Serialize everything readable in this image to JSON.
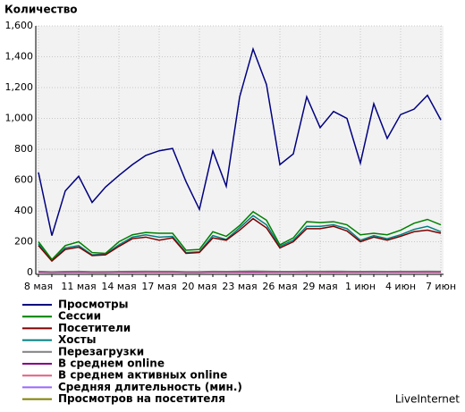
{
  "chart_data": {
    "type": "line",
    "title": "Количество",
    "source": "LiveInternet",
    "categories": [
      "8 мая",
      null,
      null,
      "11 мая",
      null,
      null,
      "14 мая",
      null,
      null,
      "17 мая",
      null,
      null,
      "20 мая",
      null,
      null,
      "23 мая",
      null,
      null,
      "26 мая",
      null,
      null,
      "29 мая",
      null,
      null,
      "1 июн",
      null,
      null,
      "4 июн",
      null,
      null,
      "7 июн"
    ],
    "ylim": [
      0,
      1600
    ],
    "yticks": [
      0,
      200,
      400,
      600,
      800,
      {
        "value": 1000,
        "label": "1,000"
      },
      {
        "value": 1200,
        "label": "1,200"
      },
      {
        "value": 1400,
        "label": "1,400"
      },
      {
        "value": 1600,
        "label": "1,600"
      }
    ],
    "grid": true,
    "series": [
      {
        "name": "Просмотры",
        "color": "#000080",
        "values": [
          650,
          240,
          530,
          625,
          455,
          555,
          630,
          700,
          760,
          790,
          805,
          590,
          410,
          790,
          560,
          1140,
          1450,
          1220,
          700,
          770,
          1140,
          940,
          1045,
          1000,
          710,
          1095,
          870,
          1025,
          1060,
          1150,
          990
        ]
      },
      {
        "name": "Сессии",
        "color": "#008000",
        "values": [
          200,
          85,
          175,
          200,
          130,
          125,
          200,
          245,
          260,
          255,
          255,
          145,
          150,
          265,
          235,
          305,
          395,
          340,
          180,
          225,
          330,
          325,
          330,
          310,
          245,
          255,
          245,
          275,
          320,
          345,
          310
        ]
      },
      {
        "name": "Посетители",
        "color": "#800000",
        "values": [
          175,
          75,
          150,
          165,
          110,
          115,
          170,
          220,
          230,
          210,
          225,
          125,
          130,
          225,
          210,
          275,
          350,
          290,
          160,
          200,
          285,
          285,
          300,
          270,
          200,
          230,
          210,
          235,
          265,
          275,
          255
        ]
      },
      {
        "name": "Хосты",
        "color": "#008080",
        "values": [
          185,
          80,
          160,
          175,
          115,
          120,
          180,
          230,
          245,
          230,
          235,
          130,
          135,
          240,
          215,
          290,
          370,
          310,
          170,
          210,
          300,
          300,
          310,
          285,
          210,
          240,
          220,
          245,
          280,
          300,
          265
        ]
      },
      {
        "name": "Перезагрузки",
        "color": "#808080",
        "values": [
          8,
          5,
          7,
          8,
          6,
          6,
          7,
          8,
          9,
          8,
          8,
          6,
          6,
          8,
          7,
          9,
          10,
          9,
          7,
          7,
          9,
          8,
          9,
          8,
          7,
          8,
          7,
          8,
          8,
          9,
          8
        ]
      },
      {
        "name": "В среднем online",
        "color": "#800080",
        "values": [
          4,
          2,
          3,
          4,
          3,
          3,
          4,
          4,
          5,
          5,
          5,
          3,
          3,
          5,
          4,
          5,
          6,
          5,
          4,
          4,
          5,
          5,
          5,
          5,
          4,
          5,
          4,
          5,
          5,
          5,
          5
        ]
      },
      {
        "name": "В среднем активных online",
        "color": "#e06080",
        "values": [
          2,
          1,
          2,
          2,
          1,
          1,
          2,
          2,
          2,
          2,
          2,
          1,
          1,
          2,
          2,
          2,
          3,
          2,
          2,
          2,
          2,
          2,
          2,
          2,
          2,
          2,
          2,
          2,
          2,
          2,
          2
        ]
      },
      {
        "name": "Средняя длительность (мин.)",
        "color": "#9966ff",
        "values": [
          5,
          4,
          5,
          5,
          4,
          4,
          5,
          5,
          5,
          5,
          5,
          4,
          4,
          5,
          5,
          5,
          6,
          5,
          4,
          5,
          5,
          5,
          5,
          5,
          4,
          5,
          5,
          5,
          5,
          5,
          5
        ]
      },
      {
        "name": "Просмотров на посетителя",
        "color": "#808000",
        "values": [
          3.7,
          3.2,
          3.5,
          3.8,
          4.1,
          4.8,
          3.7,
          3.2,
          3.3,
          3.8,
          3.6,
          4.7,
          3.2,
          3.5,
          2.7,
          4.1,
          4.1,
          4.2,
          4.4,
          3.9,
          4.0,
          3.3,
          3.5,
          3.7,
          3.6,
          4.8,
          4.1,
          4.4,
          4.0,
          4.2,
          3.9
        ]
      }
    ]
  }
}
